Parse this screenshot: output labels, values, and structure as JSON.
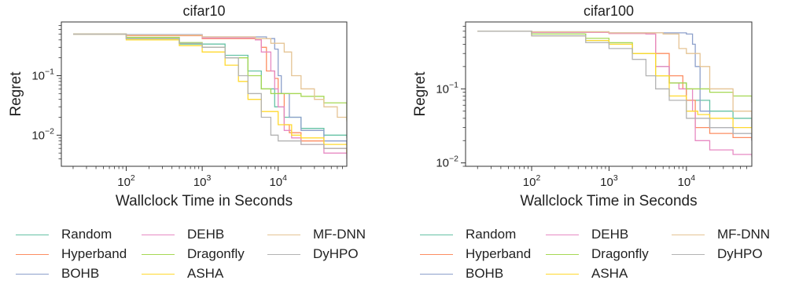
{
  "chart_data": [
    {
      "type": "line",
      "title": "cifar10",
      "xlabel": "Wallclock Time in Seconds",
      "ylabel": "Regret",
      "x_scale": "log",
      "y_scale": "log",
      "xlim": [
        14,
        80000
      ],
      "ylim": [
        0.003,
        0.8
      ],
      "x_ticks": [
        {
          "value": 100,
          "base": "10",
          "exp": "2"
        },
        {
          "value": 1000,
          "base": "10",
          "exp": "3"
        },
        {
          "value": 10000,
          "base": "10",
          "exp": "4"
        }
      ],
      "y_ticks": [
        {
          "value": 0.1,
          "base": "10",
          "exp": "−1"
        },
        {
          "value": 0.01,
          "base": "10",
          "exp": "−2"
        }
      ],
      "series": [
        {
          "name": "Random",
          "x": [
            20,
            100,
            500,
            2000,
            4000,
            6000,
            9000,
            12000,
            20000,
            40000,
            80000
          ],
          "y": [
            0.5,
            0.42,
            0.34,
            0.22,
            0.12,
            0.06,
            0.03,
            0.02,
            0.013,
            0.01,
            0.009
          ]
        },
        {
          "name": "Hyperband",
          "x": [
            20,
            100,
            1000,
            5000,
            6000,
            7000,
            9000,
            10000,
            12000,
            14000,
            20000,
            40000,
            80000
          ],
          "y": [
            0.5,
            0.47,
            0.42,
            0.4,
            0.3,
            0.12,
            0.09,
            0.05,
            0.015,
            0.011,
            0.008,
            0.006,
            0.005
          ]
        },
        {
          "name": "BOHB",
          "x": [
            20,
            100,
            1000,
            7000,
            9000,
            10000,
            11000,
            14000,
            20000,
            40000,
            80000
          ],
          "y": [
            0.5,
            0.49,
            0.45,
            0.42,
            0.28,
            0.1,
            0.05,
            0.02,
            0.012,
            0.008,
            0.007
          ]
        },
        {
          "name": "DEHB",
          "x": [
            20,
            100,
            1000,
            5000,
            6000,
            8000,
            9000,
            10000,
            12000,
            15000,
            20000,
            40000,
            80000
          ],
          "y": [
            0.5,
            0.48,
            0.43,
            0.4,
            0.25,
            0.12,
            0.06,
            0.03,
            0.012,
            0.009,
            0.007,
            0.005,
            0.004
          ]
        },
        {
          "name": "Dragonfly",
          "x": [
            20,
            100,
            500,
            1000,
            2000,
            4000,
            6000,
            8000,
            20000,
            40000,
            80000
          ],
          "y": [
            0.5,
            0.44,
            0.36,
            0.3,
            0.2,
            0.1,
            0.06,
            0.05,
            0.045,
            0.035,
            0.018
          ]
        },
        {
          "name": "ASHA",
          "x": [
            20,
            100,
            500,
            1000,
            2000,
            3000,
            4000,
            6000,
            10000,
            15000,
            20000,
            40000,
            80000
          ],
          "y": [
            0.5,
            0.4,
            0.32,
            0.25,
            0.15,
            0.08,
            0.04,
            0.025,
            0.015,
            0.01,
            0.009,
            0.007,
            0.005
          ]
        },
        {
          "name": "MF-DNN",
          "x": [
            20,
            100,
            1000,
            5000,
            8000,
            12000,
            15000,
            20000,
            30000,
            40000,
            60000,
            80000
          ],
          "y": [
            0.5,
            0.48,
            0.45,
            0.42,
            0.35,
            0.25,
            0.1,
            0.06,
            0.04,
            0.03,
            0.02,
            0.017
          ]
        },
        {
          "name": "DyHPO",
          "x": [
            20,
            100,
            500,
            1000,
            2000,
            3000,
            4000,
            6000,
            8000,
            10000,
            20000,
            40000,
            80000
          ],
          "y": [
            0.5,
            0.42,
            0.35,
            0.3,
            0.2,
            0.1,
            0.05,
            0.02,
            0.01,
            0.008,
            0.007,
            0.006,
            0.006
          ]
        }
      ]
    },
    {
      "type": "line",
      "title": "cifar100",
      "xlabel": "Wallclock Time in Seconds",
      "ylabel": "Regret",
      "x_scale": "log",
      "y_scale": "log",
      "xlim": [
        14,
        70000
      ],
      "ylim": [
        0.009,
        0.8
      ],
      "x_ticks": [
        {
          "value": 100,
          "base": "10",
          "exp": "2"
        },
        {
          "value": 1000,
          "base": "10",
          "exp": "3"
        },
        {
          "value": 10000,
          "base": "10",
          "exp": "4"
        }
      ],
      "y_ticks": [
        {
          "value": 0.1,
          "base": "10",
          "exp": "−1"
        },
        {
          "value": 0.01,
          "base": "10",
          "exp": "−2"
        }
      ],
      "series": [
        {
          "name": "Random",
          "x": [
            20,
            100,
            500,
            1000,
            2000,
            4000,
            6000,
            10000,
            20000,
            40000,
            70000
          ],
          "y": [
            0.6,
            0.55,
            0.45,
            0.4,
            0.3,
            0.2,
            0.12,
            0.07,
            0.05,
            0.04,
            0.03
          ]
        },
        {
          "name": "Hyperband",
          "x": [
            20,
            100,
            1000,
            3000,
            4000,
            6000,
            9000,
            10000,
            13000,
            20000,
            40000,
            70000
          ],
          "y": [
            0.6,
            0.58,
            0.56,
            0.55,
            0.3,
            0.15,
            0.1,
            0.07,
            0.03,
            0.025,
            0.022,
            0.02
          ]
        },
        {
          "name": "BOHB",
          "x": [
            20,
            100,
            1000,
            10000,
            12000,
            13000,
            15000,
            20000,
            40000,
            70000
          ],
          "y": [
            0.6,
            0.59,
            0.57,
            0.55,
            0.4,
            0.2,
            0.05,
            0.03,
            0.025,
            0.02
          ]
        },
        {
          "name": "DEHB",
          "x": [
            20,
            100,
            1000,
            3000,
            4000,
            6000,
            8000,
            12000,
            13000,
            20000,
            40000,
            70000
          ],
          "y": [
            0.6,
            0.58,
            0.56,
            0.55,
            0.2,
            0.12,
            0.1,
            0.05,
            0.02,
            0.015,
            0.013,
            0.012
          ]
        },
        {
          "name": "Dragonfly",
          "x": [
            20,
            100,
            500,
            1000,
            2000,
            4000,
            6000,
            10000,
            20000,
            40000,
            70000
          ],
          "y": [
            0.6,
            0.55,
            0.48,
            0.42,
            0.3,
            0.15,
            0.12,
            0.1,
            0.09,
            0.08,
            0.065
          ]
        },
        {
          "name": "ASHA",
          "x": [
            20,
            100,
            500,
            1000,
            2000,
            4000,
            6000,
            10000,
            14000,
            20000,
            40000,
            70000
          ],
          "y": [
            0.6,
            0.52,
            0.45,
            0.4,
            0.3,
            0.15,
            0.08,
            0.05,
            0.045,
            0.04,
            0.03,
            0.025
          ]
        },
        {
          "name": "MF-DNN",
          "x": [
            20,
            100,
            1000,
            5000,
            8000,
            10000,
            15000,
            20000,
            40000,
            70000
          ],
          "y": [
            0.6,
            0.59,
            0.57,
            0.55,
            0.35,
            0.3,
            0.2,
            0.1,
            0.05,
            0.03
          ]
        },
        {
          "name": "DyHPO",
          "x": [
            20,
            100,
            500,
            1000,
            2000,
            3000,
            4000,
            6000,
            10000,
            20000,
            40000,
            70000
          ],
          "y": [
            0.6,
            0.52,
            0.42,
            0.35,
            0.25,
            0.15,
            0.1,
            0.07,
            0.04,
            0.03,
            0.025,
            0.02
          ]
        }
      ]
    }
  ],
  "legend": [
    {
      "label": "Random",
      "color": "#66c2a5"
    },
    {
      "label": "Hyperband",
      "color": "#fc8d62"
    },
    {
      "label": "BOHB",
      "color": "#8da0cb"
    },
    {
      "label": "DEHB",
      "color": "#e78ac3"
    },
    {
      "label": "Dragonfly",
      "color": "#a6d854"
    },
    {
      "label": "ASHA",
      "color": "#ffd92f"
    },
    {
      "label": "MF-DNN",
      "color": "#e5c494"
    },
    {
      "label": "DyHPO",
      "color": "#b3b3b3"
    }
  ]
}
